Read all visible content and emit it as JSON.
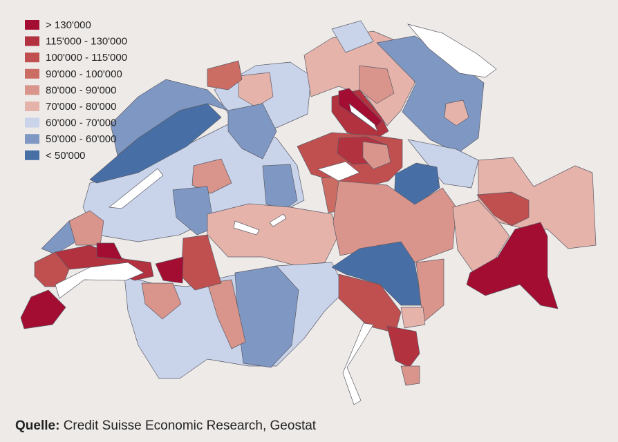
{
  "legend": {
    "items": [
      {
        "label": "> 130'000",
        "color": "#a30d32"
      },
      {
        "label": "115'000 - 130'000",
        "color": "#b3323f"
      },
      {
        "label": "100'000 - 115'000",
        "color": "#c04f4f"
      },
      {
        "label": "90'000 - 100'000",
        "color": "#cc6d64"
      },
      {
        "label": "80'000 - 90'000",
        "color": "#d9948b"
      },
      {
        "label": "70'000 - 80'000",
        "color": "#e5b3aa"
      },
      {
        "label": "60'000 - 70'000",
        "color": "#c9d4eb"
      },
      {
        "label": "50'000 - 60'000",
        "color": "#7f98c3"
      },
      {
        "label": "< 50'000",
        "color": "#476fa5"
      }
    ]
  },
  "source": {
    "label": "Quelle:",
    "text": "Credit Suisse Economic Research, Geostat"
  }
}
